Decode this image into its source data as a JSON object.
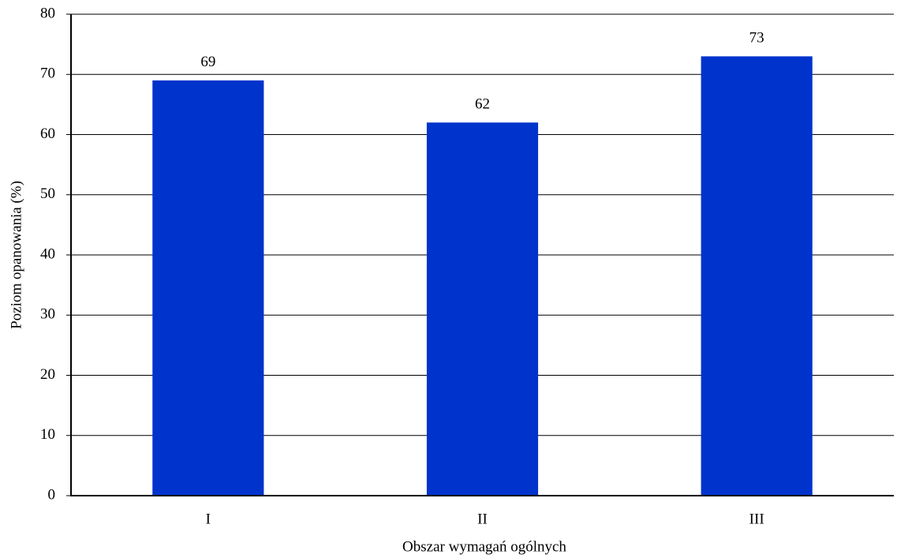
{
  "chart_data": {
    "type": "bar",
    "x_label": "Obszar wymagań ogólnych",
    "y_label": "Poziom opanowania (%)",
    "categories": [
      "I",
      "II",
      "III"
    ],
    "values": [
      69,
      62,
      73
    ],
    "color": "#0033cc",
    "ylim": [
      0,
      80
    ],
    "yticks": [
      0,
      10,
      20,
      30,
      40,
      50,
      60,
      70,
      80
    ],
    "grid": true,
    "show_value_labels": true
  }
}
